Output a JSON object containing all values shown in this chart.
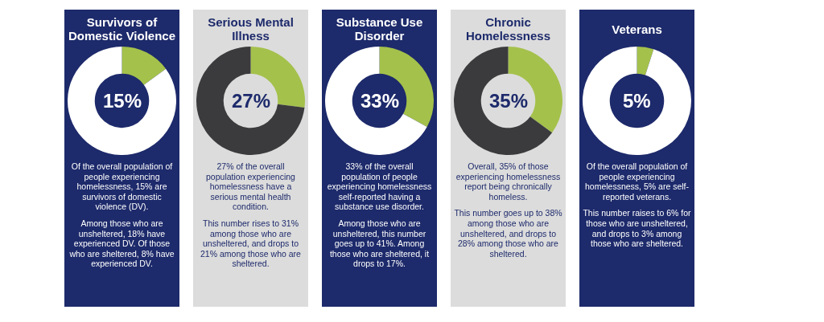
{
  "chart_data": [
    {
      "type": "donut",
      "title": "Survivors of Domestic Violence",
      "categories": [
        null,
        null
      ],
      "values": [
        15,
        85
      ],
      "colors": [
        "#a4c14b",
        "#ffffff"
      ],
      "legend": false,
      "annotations": [
        "15%",
        "Of the overall population of people experiencing homelessness, 15% are survivors of domestic violence (DV).",
        "Among those who are unsheltered, 18% have experienced DV. Of those who are sheltered, 8% have experienced DV."
      ]
    },
    {
      "type": "donut",
      "title": "Serious Mental Illness",
      "categories": [
        null,
        null
      ],
      "values": [
        27,
        73
      ],
      "colors": [
        "#a4c14b",
        "#3b3b3d"
      ],
      "legend": false,
      "annotations": [
        "27%",
        "27% of the overall population experiencing homelessness have a serious mental health condition.",
        "This number rises to 31% among those who are unsheltered, and drops to 21% among those who are sheltered."
      ]
    },
    {
      "type": "donut",
      "title": "Substance Use Disorder",
      "categories": [
        null,
        null
      ],
      "values": [
        33,
        67
      ],
      "colors": [
        "#a4c14b",
        "#ffffff"
      ],
      "legend": false,
      "annotations": [
        "33%",
        "33% of the overall population of people experiencing homelessness self-reported having a substance use disorder.",
        "Among those who are unsheltered, this number goes up to 41%. Among those who are sheltered, it drops to 17%."
      ]
    },
    {
      "type": "donut",
      "title": "Chronic Homelessness",
      "categories": [
        null,
        null
      ],
      "values": [
        35,
        65
      ],
      "colors": [
        "#a4c14b",
        "#3b3b3d"
      ],
      "legend": false,
      "annotations": [
        "35%",
        "Overall, 35% of those experiencing homelessness report being chronically homeless.",
        "This number goes up to 38% among those who are unsheltered, and drops to 28% among those who are sheltered."
      ]
    },
    {
      "type": "donut",
      "title": "Veterans",
      "categories": [
        null,
        null
      ],
      "values": [
        5,
        95
      ],
      "colors": [
        "#a4c14b",
        "#ffffff"
      ],
      "legend": false,
      "annotations": [
        "5%",
        "Of the overall population of people experiencing homelessness, 5% are self-reported veterans.",
        "This number raises to 6% for those who are unsheltered, and drops to 3% among those who are sheltered."
      ]
    }
  ]
}
